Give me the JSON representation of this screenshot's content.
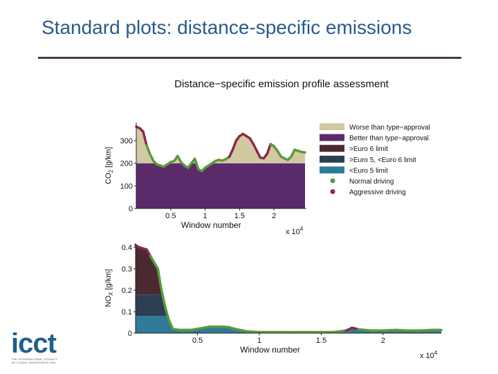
{
  "slide": {
    "title": "Standard plots: distance-specific emissions"
  },
  "logo": {
    "text": "icct",
    "subtitle_line1": "THE INTERNATIONAL COUNCIL",
    "subtitle_line2": "ON CLEAN TRANSPORTATION"
  },
  "colors": {
    "worse_than_type_approval": "#d2c9a3",
    "better_than_type_approval": "#5a2a6b",
    "above_euro6": "#4a2a30",
    "euro5_to_euro6": "#2e3e52",
    "below_euro5": "#2f7a96",
    "normal_driving": "#5a9a3a",
    "aggressive_driving": "#8a2a4a"
  },
  "chart_data": [
    {
      "type": "area",
      "title": "Distance−specific emission profile assessment",
      "xlabel": "Window number",
      "x_multiplier": "x 10",
      "x_multiplier_exp": "4",
      "ylabel_main": "CO",
      "ylabel_sub": "2",
      "ylabel_unit": " [g/km]",
      "xlim": [
        0,
        24700
      ],
      "ylim": [
        0,
        380
      ],
      "xticks": [
        5000,
        10000,
        15000,
        20000
      ],
      "xtick_labels": [
        "0.5",
        "1",
        "1.5",
        "2"
      ],
      "yticks": [
        0,
        100,
        200,
        300
      ],
      "ytick_labels": [
        "0",
        "100",
        "200",
        "300"
      ],
      "type_approval_limit": 200,
      "legend": [
        {
          "label": "Worse than type−approval",
          "kind": "patch",
          "color_key": "worse_than_type_approval"
        },
        {
          "label": "Better than type−approval",
          "kind": "patch",
          "color_key": "better_than_type_approval"
        },
        {
          "label": ">Euro 6 limit",
          "kind": "patch",
          "color_key": "above_euro6"
        },
        {
          "label": ">Euro 5, <Euro 6 limit",
          "kind": "patch",
          "color_key": "euro5_to_euro6"
        },
        {
          "label": "<Euro 5 limit",
          "kind": "patch",
          "color_key": "below_euro5"
        },
        {
          "label": "Normal driving",
          "kind": "dot",
          "color_key": "normal_driving"
        },
        {
          "label": "Aggressive driving",
          "kind": "dot",
          "color_key": "aggressive_driving"
        }
      ],
      "legend_position": "right",
      "x": [
        0,
        500,
        1000,
        1500,
        2000,
        2500,
        3000,
        3500,
        4000,
        4500,
        5000,
        5500,
        6000,
        6500,
        7000,
        7500,
        8000,
        8500,
        9000,
        9500,
        10000,
        10500,
        11000,
        11500,
        12000,
        12500,
        13000,
        13500,
        14000,
        14500,
        15000,
        15500,
        16000,
        16500,
        17000,
        17500,
        18000,
        18500,
        19000,
        19500,
        20000,
        20500,
        21000,
        21500,
        22000,
        22500,
        23000,
        23500,
        24000,
        24500
      ],
      "y": [
        362,
        355,
        340,
        280,
        240,
        210,
        195,
        190,
        185,
        195,
        205,
        210,
        232,
        205,
        190,
        180,
        200,
        220,
        175,
        165,
        180,
        190,
        200,
        210,
        215,
        212,
        218,
        228,
        260,
        300,
        320,
        330,
        320,
        310,
        285,
        255,
        225,
        222,
        242,
        285,
        275,
        255,
        230,
        222,
        215,
        230,
        260,
        255,
        250,
        248
      ],
      "aggressive_ranges": [
        [
          0,
          1500
        ],
        [
          13500,
          19500
        ]
      ]
    },
    {
      "type": "area",
      "title": "",
      "xlabel": "Window number",
      "x_multiplier": "x 10",
      "x_multiplier_exp": "4",
      "ylabel_main": "NO",
      "ylabel_sub": "X",
      "ylabel_unit": " [g/km]",
      "xlim": [
        0,
        24700
      ],
      "ylim": [
        0,
        0.42
      ],
      "xticks": [
        5000,
        10000,
        15000,
        20000
      ],
      "xtick_labels": [
        "0.5",
        "1",
        "1.5",
        "2"
      ],
      "yticks": [
        0,
        0.1,
        0.2,
        0.3,
        0.4
      ],
      "ytick_labels": [
        "0",
        "0.1",
        "0.2",
        "0.3",
        "0.4"
      ],
      "euro5_limit": 0.08,
      "euro6_limit": 0.18,
      "x": [
        0,
        300,
        600,
        900,
        1200,
        1500,
        1800,
        2100,
        2400,
        2700,
        3000,
        3500,
        4000,
        4500,
        5000,
        5500,
        6000,
        6500,
        7000,
        7500,
        8000,
        9000,
        10000,
        11000,
        12000,
        13000,
        14000,
        15000,
        16000,
        16500,
        17000,
        17500,
        18000,
        18500,
        19000,
        20000,
        21000,
        22000,
        23000,
        24000,
        24700
      ],
      "y": [
        0.41,
        0.4,
        0.395,
        0.39,
        0.36,
        0.33,
        0.3,
        0.2,
        0.12,
        0.06,
        0.02,
        0.015,
        0.015,
        0.015,
        0.02,
        0.025,
        0.03,
        0.03,
        0.03,
        0.028,
        0.02,
        0.008,
        0.005,
        0.005,
        0.005,
        0.005,
        0.005,
        0.005,
        0.005,
        0.008,
        0.012,
        0.025,
        0.018,
        0.015,
        0.012,
        0.012,
        0.015,
        0.012,
        0.012,
        0.015,
        0.015
      ],
      "aggressive_ranges": [
        [
          0,
          1200
        ],
        [
          17000,
          18000
        ]
      ]
    }
  ]
}
